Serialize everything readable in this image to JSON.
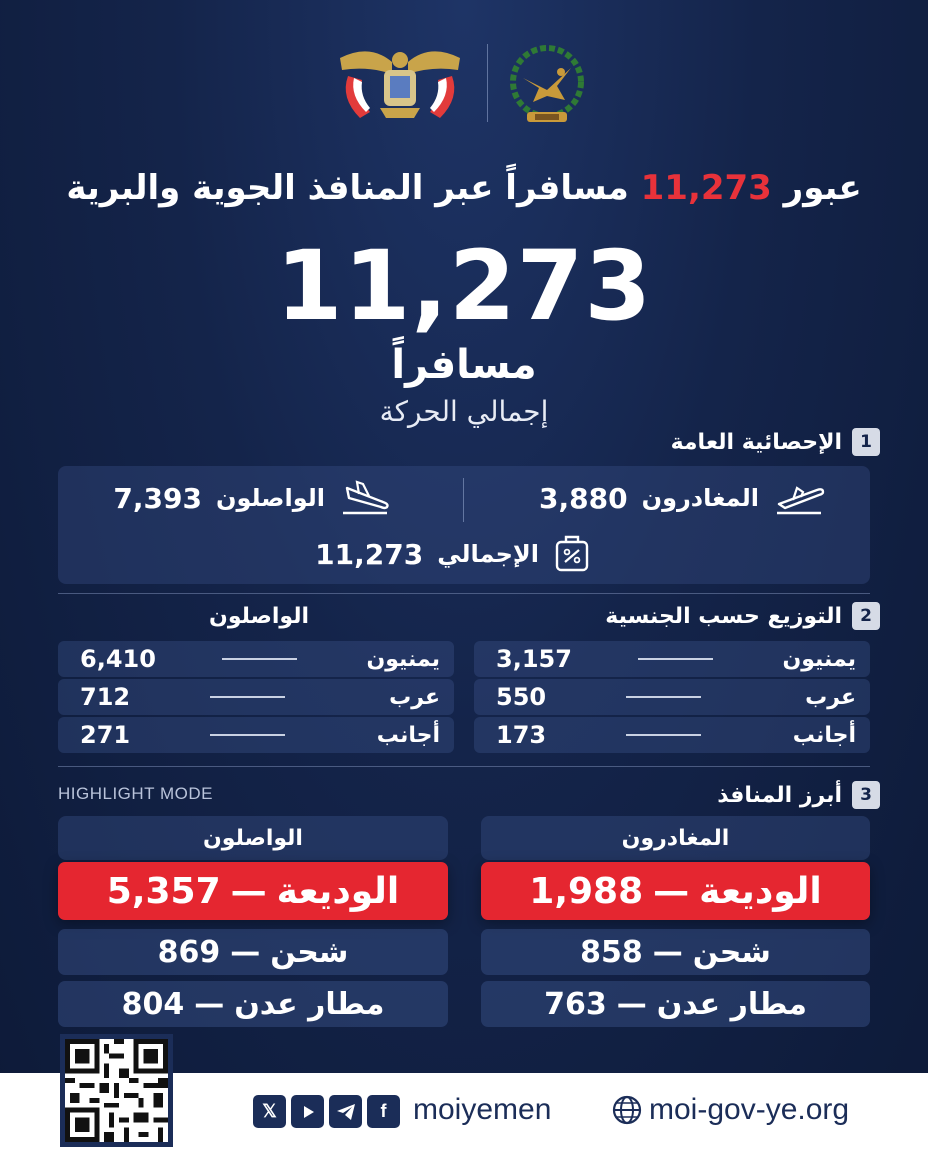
{
  "headline": {
    "prefix": "عبور",
    "number": "11,273",
    "suffix": "مسافراً عبر المنافذ الجوية والبرية"
  },
  "hero": {
    "number": "11,273",
    "unit": "مسافراً",
    "caption": "إجمالي الحركة"
  },
  "section1": {
    "num": "1",
    "title": "الإحصائية العامة",
    "departures": {
      "label": "المغادرون",
      "value": "3,880",
      "icon": "plane-takeoff-icon"
    },
    "arrivals": {
      "label": "الواصلون",
      "value": "7,393",
      "icon": "plane-landing-icon"
    },
    "total": {
      "label": "الإجمالي",
      "value": "11,273",
      "icon": "luggage-icon"
    }
  },
  "section2": {
    "num": "2",
    "title": "التوزيع حسب الجنسية",
    "arrivals_title": "الواصلون",
    "departures": [
      {
        "label": "يمنيون",
        "value": "3,157"
      },
      {
        "label": "عرب",
        "value": "550"
      },
      {
        "label": "أجانب",
        "value": "173"
      }
    ],
    "arrivals": [
      {
        "label": "يمنيون",
        "value": "6,410"
      },
      {
        "label": "عرب",
        "value": "712"
      },
      {
        "label": "أجانب",
        "value": "271"
      }
    ]
  },
  "section3": {
    "num": "3",
    "title": "أبرز المنافذ",
    "mode_label": "HIGHLIGHT MODE",
    "departures_title": "المغادرون",
    "arrivals_title": "الواصلون",
    "departures": [
      {
        "name": "الوديعة",
        "value": "1,988"
      },
      {
        "name": "شحن",
        "value": "858"
      },
      {
        "name": "مطار عدن",
        "value": "763"
      }
    ],
    "arrivals": [
      {
        "name": "الوديعة",
        "value": "5,357"
      },
      {
        "name": "شحن",
        "value": "869"
      },
      {
        "name": "مطار عدن",
        "value": "804"
      }
    ],
    "dash": "—"
  },
  "footer": {
    "social_icons": [
      "x-icon",
      "youtube-icon",
      "telegram-icon",
      "facebook-icon"
    ],
    "handle": "moiyemen",
    "website": "moi-gov-ye.org"
  },
  "colors": {
    "background": "#14244a",
    "accent_red": "#e52630",
    "panel": "#2e4270",
    "footer_text": "#1b2d58"
  }
}
